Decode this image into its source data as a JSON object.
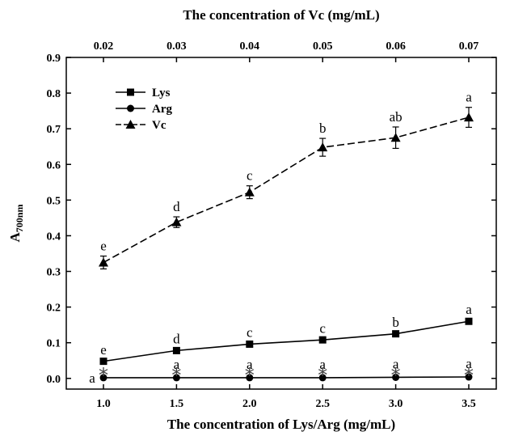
{
  "chart_data": {
    "type": "line",
    "xlabel_bottom": "The concentration of Lys/Arg (mg/mL)",
    "xlabel_top": "The concentration of Vc (mg/mL)",
    "ylabel_main": "A",
    "ylabel_sub": "700nm",
    "x_bottom": [
      "1.0",
      "1.5",
      "2.0",
      "2.5",
      "3.0",
      "3.5"
    ],
    "x_top": [
      "0.02",
      "0.03",
      "0.04",
      "0.05",
      "0.06",
      "0.07"
    ],
    "ylim": [
      -0.03,
      0.9
    ],
    "yticks": [
      "0.0",
      "0.1",
      "0.2",
      "0.3",
      "0.4",
      "0.5",
      "0.6",
      "0.7",
      "0.8",
      "0.9"
    ],
    "legend_position": "top-left",
    "series": [
      {
        "name": "Lys",
        "marker": "square",
        "dash": "solid",
        "values": [
          0.048,
          0.078,
          0.096,
          0.108,
          0.125,
          0.16
        ],
        "errors": [
          0.004,
          0.004,
          0.004,
          0.004,
          0.004,
          0.005
        ],
        "letters": [
          "e",
          "d",
          "c",
          "c",
          "b",
          "a"
        ]
      },
      {
        "name": "Arg",
        "marker": "circle",
        "dash": "solid",
        "values": [
          0.002,
          0.002,
          0.002,
          0.002,
          0.003,
          0.004
        ],
        "errors": [
          0.001,
          0.001,
          0.001,
          0.001,
          0.001,
          0.001
        ],
        "letters": [
          "a",
          "a",
          "a",
          "a",
          "a",
          "a"
        ]
      },
      {
        "name": "Vc",
        "marker": "triangle",
        "dash": "dashed",
        "values": [
          0.325,
          0.438,
          0.522,
          0.648,
          0.675,
          0.732
        ],
        "errors": [
          0.018,
          0.015,
          0.018,
          0.025,
          0.03,
          0.028
        ],
        "letters": [
          "e",
          "d",
          "c",
          "b",
          "ab",
          "a"
        ]
      }
    ],
    "asterisks": [
      "*",
      "*",
      "*",
      "*",
      "*",
      "*"
    ]
  }
}
